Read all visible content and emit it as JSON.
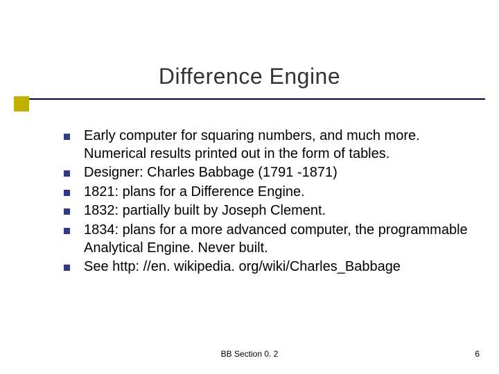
{
  "slide": {
    "title": "Difference Engine",
    "bullets": [
      "Early computer for squaring numbers, and much more. Numerical results printed out in the form of tables.",
      "Designer: Charles Babbage (1791 -1871)",
      "1821: plans for a Difference Engine.",
      "1832: partially built by Joseph Clement.",
      "1834: plans for a more advanced computer, the programmable Analytical Engine. Never built.",
      "See http: //en. wikipedia. org/wiki/Charles_Babbage"
    ],
    "footer_center": "BB Section 0. 2",
    "footer_page": "6"
  },
  "style": {
    "background_color": "#ffffff",
    "title_color": "#333333",
    "title_fontsize": 32,
    "rule_color": "#000033",
    "accent_color": "#c0b000",
    "bullet_marker_color": "#2b3a8a",
    "body_fontsize": 20,
    "body_color": "#000000",
    "footer_fontsize": 12
  }
}
